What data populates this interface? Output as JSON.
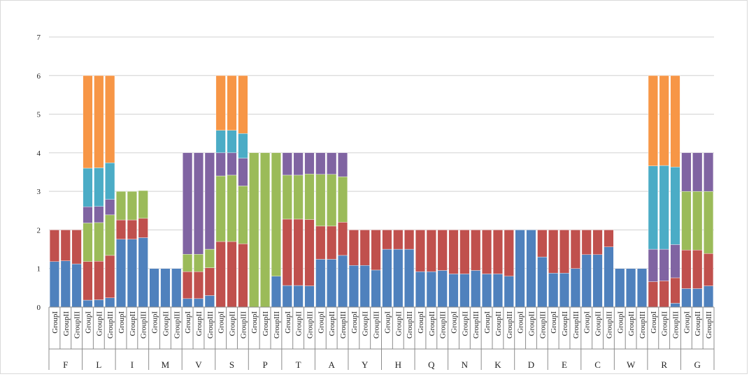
{
  "chart_data": {
    "type": "bar",
    "stacked": true,
    "title": "",
    "xlabel": "",
    "ylabel": "",
    "ylim": [
      0,
      7
    ],
    "yticks": [
      0,
      1,
      2,
      3,
      4,
      5,
      6,
      7
    ],
    "grid": true,
    "legend": "none",
    "group_labels": [
      "GroupI",
      "GroupII",
      "GroupIII"
    ],
    "categories": [
      "F",
      "L",
      "I",
      "M",
      "V",
      "S",
      "P",
      "T",
      "A",
      "Y",
      "H",
      "Q",
      "N",
      "K",
      "D",
      "E",
      "C",
      "W",
      "R",
      "G"
    ],
    "segment_colors": [
      "#4F81BD",
      "#C0504D",
      "#9BBB59",
      "#8064A2",
      "#4BACC6",
      "#F79646"
    ],
    "bars": [
      {
        "category": "F",
        "group": "GroupI",
        "segments": [
          1.18,
          0.82,
          0,
          0,
          0,
          0
        ]
      },
      {
        "category": "F",
        "group": "GroupII",
        "segments": [
          1.2,
          0.8,
          0,
          0,
          0,
          0
        ]
      },
      {
        "category": "F",
        "group": "GroupIII",
        "segments": [
          1.12,
          0.88,
          0,
          0,
          0,
          0
        ]
      },
      {
        "category": "L",
        "group": "GroupI",
        "segments": [
          0.18,
          1.0,
          1.0,
          0.42,
          1.0,
          2.4
        ]
      },
      {
        "category": "L",
        "group": "GroupII",
        "segments": [
          0.19,
          1.0,
          1.0,
          0.42,
          1.0,
          2.39
        ]
      },
      {
        "category": "L",
        "group": "GroupIII",
        "segments": [
          0.24,
          1.1,
          1.05,
          0.4,
          0.95,
          2.26
        ]
      },
      {
        "category": "I",
        "group": "GroupI",
        "segments": [
          1.76,
          0.5,
          0.74,
          0,
          0,
          0
        ]
      },
      {
        "category": "I",
        "group": "GroupII",
        "segments": [
          1.76,
          0.5,
          0.74,
          0,
          0,
          0
        ]
      },
      {
        "category": "I",
        "group": "GroupIII",
        "segments": [
          1.8,
          0.5,
          0.72,
          0,
          0,
          0
        ]
      },
      {
        "category": "M",
        "group": "GroupI",
        "segments": [
          1.0,
          0,
          0,
          0,
          0,
          0
        ]
      },
      {
        "category": "M",
        "group": "GroupII",
        "segments": [
          1.0,
          0,
          0,
          0,
          0,
          0
        ]
      },
      {
        "category": "M",
        "group": "GroupIII",
        "segments": [
          1.0,
          0,
          0,
          0,
          0,
          0
        ]
      },
      {
        "category": "V",
        "group": "GroupI",
        "segments": [
          0.22,
          0.7,
          0.45,
          2.63,
          0,
          0
        ]
      },
      {
        "category": "V",
        "group": "GroupII",
        "segments": [
          0.22,
          0.7,
          0.45,
          2.63,
          0,
          0
        ]
      },
      {
        "category": "V",
        "group": "GroupIII",
        "segments": [
          0.3,
          0.72,
          0.48,
          2.5,
          0,
          0
        ]
      },
      {
        "category": "S",
        "group": "GroupI",
        "segments": [
          0,
          1.7,
          1.7,
          0.6,
          0.58,
          1.42
        ]
      },
      {
        "category": "S",
        "group": "GroupII",
        "segments": [
          0,
          1.7,
          1.72,
          0.58,
          0.58,
          1.42
        ]
      },
      {
        "category": "S",
        "group": "GroupIII",
        "segments": [
          0,
          1.64,
          1.5,
          0.72,
          0.64,
          1.5
        ]
      },
      {
        "category": "P",
        "group": "GroupI",
        "segments": [
          0,
          0,
          4.0,
          0,
          0,
          0
        ]
      },
      {
        "category": "P",
        "group": "GroupII",
        "segments": [
          0,
          0,
          4.0,
          0,
          0,
          0
        ]
      },
      {
        "category": "P",
        "group": "GroupIII",
        "segments": [
          0.8,
          0,
          3.2,
          0,
          0,
          0
        ]
      },
      {
        "category": "T",
        "group": "GroupI",
        "segments": [
          0.56,
          1.72,
          1.14,
          0.58,
          0,
          0
        ]
      },
      {
        "category": "T",
        "group": "GroupII",
        "segments": [
          0.56,
          1.72,
          1.14,
          0.58,
          0,
          0
        ]
      },
      {
        "category": "T",
        "group": "GroupIII",
        "segments": [
          0.55,
          1.72,
          1.18,
          0.55,
          0,
          0
        ]
      },
      {
        "category": "A",
        "group": "GroupI",
        "segments": [
          1.24,
          0.86,
          1.34,
          0.56,
          0,
          0
        ]
      },
      {
        "category": "A",
        "group": "GroupII",
        "segments": [
          1.24,
          0.86,
          1.34,
          0.56,
          0,
          0
        ]
      },
      {
        "category": "A",
        "group": "GroupIII",
        "segments": [
          1.34,
          0.86,
          1.18,
          0.62,
          0,
          0
        ]
      },
      {
        "category": "Y",
        "group": "GroupI",
        "segments": [
          1.08,
          0.92,
          0,
          0,
          0,
          0
        ]
      },
      {
        "category": "Y",
        "group": "GroupII",
        "segments": [
          1.08,
          0.92,
          0,
          0,
          0,
          0
        ]
      },
      {
        "category": "Y",
        "group": "GroupIII",
        "segments": [
          0.96,
          1.04,
          0,
          0,
          0,
          0
        ]
      },
      {
        "category": "H",
        "group": "GroupI",
        "segments": [
          1.5,
          0.5,
          0,
          0,
          0,
          0
        ]
      },
      {
        "category": "H",
        "group": "GroupII",
        "segments": [
          1.5,
          0.5,
          0,
          0,
          0,
          0
        ]
      },
      {
        "category": "H",
        "group": "GroupIII",
        "segments": [
          1.5,
          0.5,
          0,
          0,
          0,
          0
        ]
      },
      {
        "category": "Q",
        "group": "GroupI",
        "segments": [
          0.92,
          1.08,
          0,
          0,
          0,
          0
        ]
      },
      {
        "category": "Q",
        "group": "GroupII",
        "segments": [
          0.92,
          1.08,
          0,
          0,
          0,
          0
        ]
      },
      {
        "category": "Q",
        "group": "GroupIII",
        "segments": [
          0.95,
          1.05,
          0,
          0,
          0,
          0
        ]
      },
      {
        "category": "N",
        "group": "GroupI",
        "segments": [
          0.86,
          1.14,
          0,
          0,
          0,
          0
        ]
      },
      {
        "category": "N",
        "group": "GroupII",
        "segments": [
          0.86,
          1.14,
          0,
          0,
          0,
          0
        ]
      },
      {
        "category": "N",
        "group": "GroupIII",
        "segments": [
          0.95,
          1.05,
          0,
          0,
          0,
          0
        ]
      },
      {
        "category": "K",
        "group": "GroupI",
        "segments": [
          0.86,
          1.14,
          0,
          0,
          0,
          0
        ]
      },
      {
        "category": "K",
        "group": "GroupII",
        "segments": [
          0.86,
          1.14,
          0,
          0,
          0,
          0
        ]
      },
      {
        "category": "K",
        "group": "GroupIII",
        "segments": [
          0.8,
          1.2,
          0,
          0,
          0,
          0
        ]
      },
      {
        "category": "D",
        "group": "GroupI",
        "segments": [
          2.0,
          0,
          0,
          0,
          0,
          0
        ]
      },
      {
        "category": "D",
        "group": "GroupII",
        "segments": [
          2.0,
          0,
          0,
          0,
          0,
          0
        ]
      },
      {
        "category": "D",
        "group": "GroupIII",
        "segments": [
          1.3,
          0.7,
          0,
          0,
          0,
          0
        ]
      },
      {
        "category": "E",
        "group": "GroupI",
        "segments": [
          0.88,
          1.12,
          0,
          0,
          0,
          0
        ]
      },
      {
        "category": "E",
        "group": "GroupII",
        "segments": [
          0.88,
          1.12,
          0,
          0,
          0,
          0
        ]
      },
      {
        "category": "E",
        "group": "GroupIII",
        "segments": [
          1.0,
          1.0,
          0,
          0,
          0,
          0
        ]
      },
      {
        "category": "C",
        "group": "GroupI",
        "segments": [
          1.36,
          0.64,
          0,
          0,
          0,
          0
        ]
      },
      {
        "category": "C",
        "group": "GroupII",
        "segments": [
          1.36,
          0.64,
          0,
          0,
          0,
          0
        ]
      },
      {
        "category": "C",
        "group": "GroupIII",
        "segments": [
          1.56,
          0.44,
          0,
          0,
          0,
          0
        ]
      },
      {
        "category": "W",
        "group": "GroupI",
        "segments": [
          1.0,
          0,
          0,
          0,
          0,
          0
        ]
      },
      {
        "category": "W",
        "group": "GroupII",
        "segments": [
          1.0,
          0,
          0,
          0,
          0,
          0
        ]
      },
      {
        "category": "W",
        "group": "GroupIII",
        "segments": [
          1.0,
          0,
          0,
          0,
          0,
          0
        ]
      },
      {
        "category": "R",
        "group": "GroupI",
        "segments": [
          0,
          0.66,
          0,
          0.84,
          2.16,
          2.34
        ]
      },
      {
        "category": "R",
        "group": "GroupII",
        "segments": [
          0,
          0.68,
          0,
          0.82,
          2.17,
          2.33
        ]
      },
      {
        "category": "R",
        "group": "GroupIII",
        "segments": [
          0.1,
          0.66,
          0,
          0.86,
          2.01,
          2.37
        ]
      },
      {
        "category": "G",
        "group": "GroupI",
        "segments": [
          0.48,
          1.0,
          1.52,
          1.0,
          0,
          0
        ]
      },
      {
        "category": "G",
        "group": "GroupII",
        "segments": [
          0.48,
          1.0,
          1.52,
          1.0,
          0,
          0
        ]
      },
      {
        "category": "G",
        "group": "GroupIII",
        "segments": [
          0.55,
          0.84,
          1.61,
          1.0,
          0,
          0
        ]
      }
    ]
  }
}
